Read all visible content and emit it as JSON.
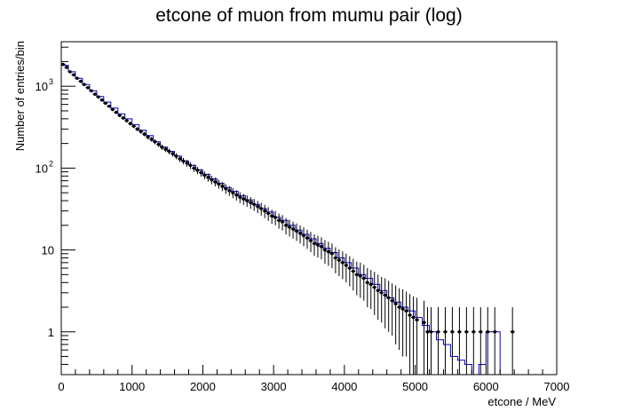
{
  "chart_data": {
    "type": "line",
    "title": "etcone of muon from mumu pair (log)",
    "xlabel": "etcone / MeV",
    "ylabel": "Number of entries/bin",
    "xlim": [
      0,
      7000
    ],
    "ylim": [
      0.3,
      3500
    ],
    "yscale": "log",
    "grid": false,
    "legend": "none",
    "x_ticks": [
      {
        "value": 0,
        "label": "0"
      },
      {
        "value": 1000,
        "label": "1000"
      },
      {
        "value": 2000,
        "label": "2000"
      },
      {
        "value": 3000,
        "label": "3000"
      },
      {
        "value": 4000,
        "label": "4000"
      },
      {
        "value": 5000,
        "label": "5000"
      },
      {
        "value": 6000,
        "label": "6000"
      },
      {
        "value": 7000,
        "label": "7000"
      }
    ],
    "y_ticks": [
      {
        "value": 1,
        "label": "1"
      },
      {
        "value": 10,
        "label": "10"
      },
      {
        "value": 100,
        "label": "10",
        "exp": "2"
      },
      {
        "value": 1000,
        "label": "10",
        "exp": "3"
      }
    ],
    "bin_width": 100,
    "series": [
      {
        "kind": "histogram",
        "color": "#0000cc",
        "x": [
          0,
          100,
          200,
          300,
          400,
          500,
          600,
          700,
          800,
          900,
          1000,
          1100,
          1200,
          1300,
          1400,
          1500,
          1600,
          1700,
          1800,
          1900,
          2000,
          2100,
          2200,
          2300,
          2400,
          2500,
          2600,
          2700,
          2800,
          2900,
          3000,
          3100,
          3200,
          3300,
          3400,
          3500,
          3600,
          3700,
          3800,
          3900,
          4000,
          4100,
          4200,
          4300,
          4400,
          4500,
          4600,
          4700,
          4800,
          4900,
          5000,
          5100,
          5200,
          5300,
          5400,
          5500,
          5600,
          5700,
          5800,
          5900,
          6000,
          6100,
          6200,
          6300,
          6400,
          6500,
          6600,
          6700,
          6800,
          6900
        ],
        "values": [
          1800,
          1500,
          1250,
          1050,
          880,
          750,
          640,
          540,
          460,
          400,
          340,
          290,
          250,
          210,
          180,
          160,
          140,
          122,
          108,
          95,
          84,
          74,
          65,
          58,
          52,
          46,
          41,
          36,
          32,
          29,
          25,
          23,
          20,
          17.5,
          15.5,
          13.7,
          12,
          10.5,
          9.3,
          8,
          7,
          6,
          5,
          4.5,
          3.8,
          3.2,
          2.6,
          2.3,
          2,
          1.8,
          1.5,
          1.2,
          1,
          0.8,
          0.7,
          0.5,
          0.45,
          0.4,
          0.3,
          0.4,
          1,
          1,
          0,
          0,
          0,
          0,
          0,
          0,
          0,
          0
        ]
      },
      {
        "kind": "points",
        "color": "#000000",
        "x": [
          25,
          75,
          125,
          175,
          225,
          275,
          325,
          375,
          425,
          475,
          525,
          575,
          625,
          675,
          725,
          775,
          825,
          875,
          925,
          975,
          1025,
          1075,
          1125,
          1175,
          1225,
          1275,
          1325,
          1375,
          1425,
          1475,
          1525,
          1575,
          1625,
          1675,
          1725,
          1775,
          1825,
          1875,
          1925,
          1975,
          2025,
          2075,
          2125,
          2175,
          2225,
          2275,
          2325,
          2375,
          2425,
          2475,
          2525,
          2575,
          2625,
          2675,
          2725,
          2775,
          2825,
          2875,
          2925,
          2975,
          3025,
          3075,
          3125,
          3175,
          3225,
          3275,
          3325,
          3375,
          3425,
          3475,
          3525,
          3575,
          3625,
          3675,
          3725,
          3775,
          3825,
          3875,
          3925,
          3975,
          4025,
          4075,
          4125,
          4175,
          4225,
          4275,
          4325,
          4375,
          4425,
          4475,
          4525,
          4575,
          4625,
          4675,
          4725,
          4775,
          4825,
          4875,
          4925,
          4975,
          5025,
          5125,
          5175,
          5225,
          5325,
          5425,
          5525,
          5625,
          5725,
          5825,
          5925,
          6025,
          6125,
          6375
        ],
        "values": [
          1850,
          1700,
          1500,
          1380,
          1250,
          1150,
          1050,
          960,
          880,
          800,
          740,
          680,
          620,
          570,
          520,
          480,
          440,
          410,
          380,
          350,
          325,
          300,
          280,
          260,
          240,
          225,
          210,
          195,
          180,
          170,
          160,
          150,
          140,
          130,
          122,
          115,
          108,
          100,
          94,
          88,
          82,
          77,
          72,
          68,
          64,
          60,
          56,
          53,
          50,
          47,
          44,
          42,
          40,
          38,
          36,
          34,
          32,
          30,
          28,
          26,
          25,
          23,
          22,
          20,
          19,
          18,
          17,
          16,
          15,
          14,
          13,
          12,
          11.5,
          11,
          10,
          9.5,
          9,
          8,
          7.5,
          7,
          6.5,
          6,
          5.5,
          5,
          4.8,
          4.5,
          4,
          3.8,
          3.5,
          3.2,
          3,
          2.8,
          2.6,
          2.4,
          2.2,
          2,
          1.9,
          1.8,
          1.6,
          1.5,
          1.4,
          1.3,
          1,
          1,
          1,
          1,
          1,
          1,
          1,
          1,
          1,
          1,
          1,
          1
        ],
        "errors": [
          43,
          41,
          39,
          37,
          35,
          34,
          32,
          31,
          30,
          28,
          27,
          26,
          25,
          24,
          23,
          22,
          21,
          20,
          19.5,
          18.7,
          18,
          17.3,
          16.7,
          16.1,
          15.5,
          15,
          14.5,
          14,
          13.4,
          13,
          12.6,
          12.2,
          11.8,
          11.4,
          11,
          10.7,
          10.4,
          10,
          9.7,
          9.4,
          9.1,
          8.8,
          8.5,
          8.2,
          8,
          7.7,
          7.5,
          7.3,
          7.1,
          6.9,
          6.6,
          6.5,
          6.3,
          6.2,
          6,
          5.8,
          5.7,
          5.5,
          5.3,
          5.1,
          5,
          4.8,
          4.7,
          4.5,
          4.4,
          4.2,
          4.1,
          4,
          3.9,
          3.7,
          3.6,
          3.5,
          3.4,
          3.3,
          3.2,
          3.1,
          3,
          2.8,
          2.7,
          2.6,
          2.5,
          2.4,
          2.3,
          2.2,
          2.2,
          2.1,
          2,
          1.9,
          1.9,
          1.8,
          1.7,
          1.7,
          1.6,
          1.5,
          1.5,
          1.4,
          1.4,
          1.3,
          1.3,
          1.2,
          1.2,
          1.1,
          1,
          1,
          1,
          1,
          1,
          1,
          1,
          1,
          1,
          1,
          1,
          1
        ]
      }
    ]
  }
}
